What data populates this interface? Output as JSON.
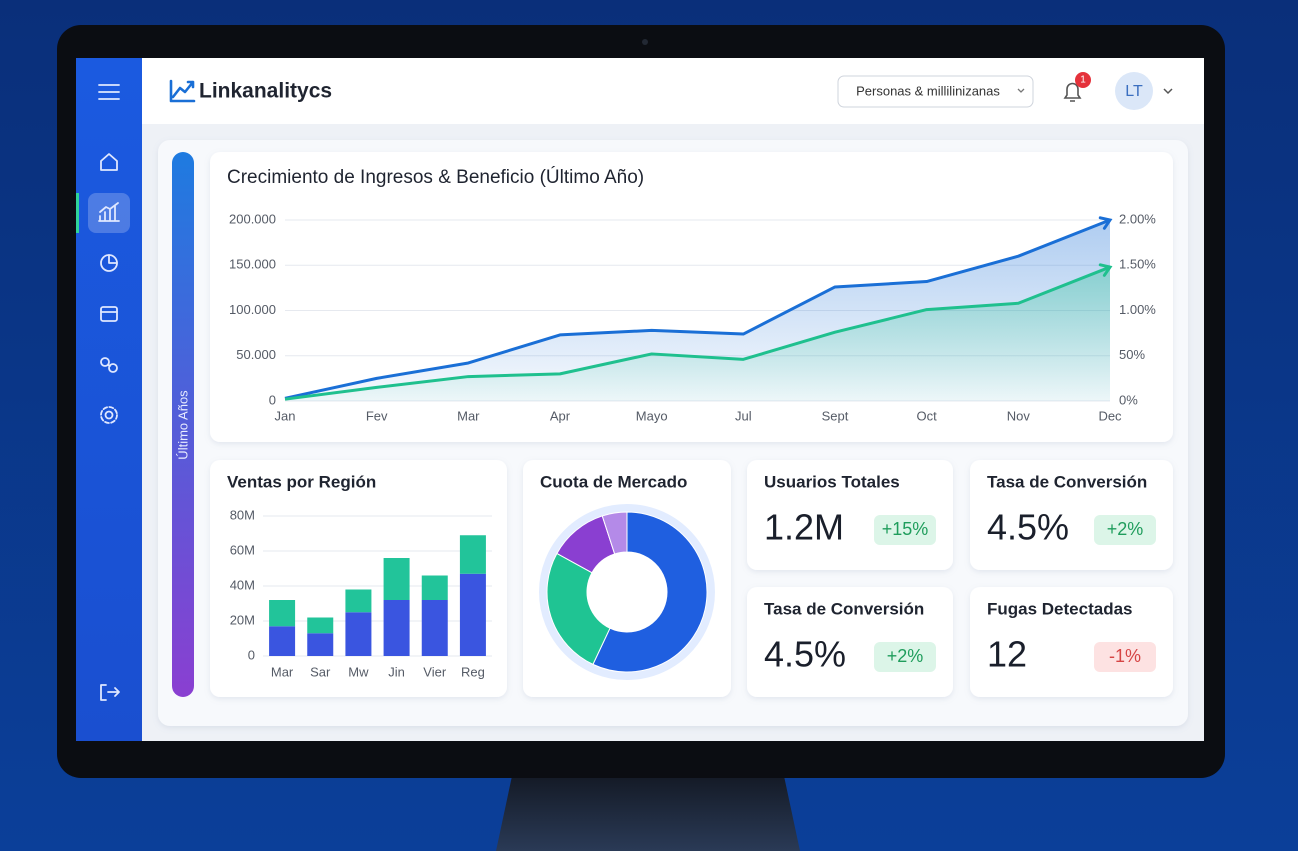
{
  "header": {
    "logo": "Linkanalitycs",
    "filter": "Personas & millilinizanas",
    "notifications": 1,
    "avatar": "LT"
  },
  "side_label": "Último Años",
  "chart_data": [
    {
      "type": "line",
      "title": "Crecimiento de Ingresos & Beneficio (Último Año)",
      "categories": [
        "Jan",
        "Fev",
        "Mar",
        "Apr",
        "Mayo",
        "Jul",
        "Sept",
        "Oct",
        "Nov",
        "Dec"
      ],
      "series": [
        {
          "color": "#1a6fd6",
          "values": [
            3000,
            25000,
            42000,
            73000,
            78000,
            74000,
            126000,
            132000,
            160000,
            200000
          ]
        },
        {
          "color": "#1fc08e",
          "values": [
            2000,
            15000,
            27000,
            30000,
            52000,
            46000,
            76000,
            101000,
            108000,
            148000
          ]
        }
      ],
      "ylim": [
        0,
        200000
      ],
      "yticks": [
        0,
        {
          "value": 50000,
          "label": "50.000"
        },
        {
          "value": 100000,
          "label": "100.000"
        },
        {
          "value": 150000,
          "label": "150.000"
        },
        {
          "value": 200000,
          "label": "200.000"
        }
      ],
      "y2lim": [
        0,
        2
      ],
      "y2ticks": [
        {
          "value": 0,
          "label": "0%"
        },
        {
          "value": 0.5,
          "label": "50%"
        },
        {
          "value": 1,
          "label": "1.00%"
        },
        {
          "value": 1.5,
          "label": "1.50%"
        },
        {
          "value": 2,
          "label": "2.00%"
        }
      ],
      "grid": true
    },
    {
      "type": "bar",
      "title": "Ventas por Región",
      "stacked": true,
      "categories": [
        "Mar",
        "Sar",
        "Mw",
        "Jin",
        "Vier",
        "Reg"
      ],
      "series": [
        {
          "color": "#3a55e0",
          "values": [
            17,
            13,
            25,
            32,
            32,
            47
          ]
        },
        {
          "color": "#22c49a",
          "values": [
            15,
            9,
            13,
            24,
            14,
            22
          ]
        }
      ],
      "ylim": [
        0,
        80
      ],
      "yticks": [
        0,
        {
          "value": 20,
          "label": "20M"
        },
        {
          "value": 40,
          "label": "40M"
        },
        {
          "value": 60,
          "label": "60M"
        },
        {
          "value": 80,
          "label": "80M"
        }
      ],
      "grid": true
    },
    {
      "type": "pie",
      "title": "Cuota de Mercado",
      "donut": true,
      "values": [
        57,
        26,
        12,
        5
      ],
      "colors": [
        "#1f5fe0",
        "#1fc493",
        "#8a3fd1",
        "#b48ae8"
      ]
    }
  ],
  "kpis": [
    {
      "title": "Usuarios Totales",
      "value": "1.2M",
      "change": "+15%"
    },
    {
      "title": "Tasa de Conversión",
      "value": "4.5%",
      "change": "+2%"
    },
    {
      "title": "Tasa de Conversión",
      "value": "4.5%",
      "change": "+2%"
    },
    {
      "title": "Fugas Detectadas",
      "value": "12",
      "change": "-1%"
    }
  ]
}
